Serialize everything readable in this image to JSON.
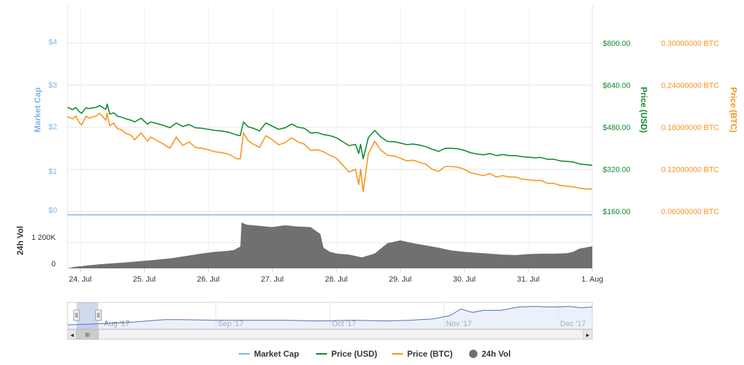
{
  "colors": {
    "market_cap": "#7cb5ec",
    "price_usd": "#0d8a2b",
    "price_btc": "#f7931a",
    "volume": "#707070",
    "grid": "#e6e6e6",
    "navigator_fill": "#dfe6f5",
    "navigator_line": "#4a6fb5"
  },
  "chart_data": [
    {
      "type": "line",
      "x_tick_labels": [
        "24. Jul",
        "25. Jul",
        "26. Jul",
        "27. Jul",
        "28. Jul",
        "29. Jul",
        "30. Jul",
        "31. Jul",
        "1. Aug"
      ],
      "x_range_days": [
        0,
        8.2
      ],
      "left_axis": {
        "label": "Market Cap",
        "ticks": [
          "$0",
          "$1",
          "$2",
          "$3",
          "$4"
        ]
      },
      "right_axis_usd": {
        "label": "Price (USD)",
        "ticks": [
          "$160.00",
          "$320.00",
          "$480.00",
          "$640.00",
          "$800.00"
        ],
        "range": [
          160,
          800
        ]
      },
      "right_axis_btc": {
        "label": "Price (BTC)",
        "ticks": [
          "0.06000000 BTC",
          "0.12000000 BTC",
          "0.18000000 BTC",
          "0.24000000 BTC",
          "0.30000000 BTC"
        ],
        "range": [
          0.06,
          0.3
        ]
      },
      "series": [
        {
          "name": "Market Cap",
          "constant": 0
        },
        {
          "name": "Price (USD)",
          "x": [
            0,
            0.08,
            0.13,
            0.18,
            0.22,
            0.27,
            0.29,
            0.33,
            0.45,
            0.5,
            0.55,
            0.6,
            0.62,
            0.66,
            0.72,
            0.78,
            0.85,
            0.9,
            1.0,
            1.05,
            1.15,
            1.25,
            1.3,
            1.4,
            1.5,
            1.6,
            1.7,
            1.8,
            1.9,
            2.0,
            2.1,
            2.2,
            2.3,
            2.4,
            2.5,
            2.55,
            2.65,
            2.7,
            2.72,
            2.75,
            2.82,
            2.9,
            3.0,
            3.1,
            3.2,
            3.3,
            3.4,
            3.5,
            3.6,
            3.7,
            3.8,
            3.9,
            4.0,
            4.1,
            4.2,
            4.3,
            4.4,
            4.5,
            4.55,
            4.58,
            4.62,
            4.7,
            4.8,
            4.9,
            5.0,
            5.1,
            5.2,
            5.3,
            5.4,
            5.5,
            5.6,
            5.7,
            5.8,
            5.9,
            6.0,
            6.1,
            6.2,
            6.3,
            6.4,
            6.5,
            6.6,
            6.7,
            6.8,
            6.9,
            7.0,
            7.1,
            7.2,
            7.3,
            7.4,
            7.5,
            7.6,
            7.7,
            7.8,
            7.9,
            8.0,
            8.1,
            8.2
          ],
          "y": [
            556,
            547,
            555,
            540,
            533,
            548,
            554,
            551,
            556,
            562,
            555,
            548,
            568,
            530,
            535,
            522,
            518,
            513,
            506,
            500,
            514,
            492,
            500,
            494,
            487,
            478,
            496,
            483,
            490,
            478,
            476,
            472,
            468,
            466,
            462,
            458,
            450,
            448,
            470,
            500,
            482,
            476,
            466,
            496,
            484,
            472,
            478,
            492,
            480,
            476,
            458,
            460,
            452,
            448,
            440,
            425,
            410,
            415,
            380,
            415,
            360,
            440,
            468,
            442,
            426,
            425,
            420,
            414,
            416,
            412,
            406,
            396,
            388,
            400,
            400,
            398,
            392,
            383,
            378,
            375,
            380,
            372,
            376,
            372,
            372,
            368,
            366,
            364,
            365,
            358,
            358,
            352,
            350,
            348,
            340,
            338,
            335
          ]
        },
        {
          "name": "Price (BTC)",
          "x": [
            0,
            0.08,
            0.13,
            0.18,
            0.22,
            0.27,
            0.29,
            0.33,
            0.45,
            0.5,
            0.55,
            0.6,
            0.62,
            0.66,
            0.72,
            0.78,
            0.85,
            0.9,
            1.0,
            1.05,
            1.15,
            1.25,
            1.3,
            1.4,
            1.5,
            1.6,
            1.7,
            1.8,
            1.9,
            2.0,
            2.1,
            2.2,
            2.3,
            2.4,
            2.5,
            2.55,
            2.65,
            2.7,
            2.72,
            2.75,
            2.82,
            2.9,
            3.0,
            3.1,
            3.2,
            3.3,
            3.4,
            3.5,
            3.6,
            3.7,
            3.8,
            3.9,
            4.0,
            4.1,
            4.2,
            4.3,
            4.4,
            4.5,
            4.55,
            4.58,
            4.62,
            4.7,
            4.8,
            4.9,
            5.0,
            5.1,
            5.2,
            5.3,
            5.4,
            5.5,
            5.6,
            5.7,
            5.8,
            5.9,
            6.0,
            6.1,
            6.2,
            6.3,
            6.4,
            6.5,
            6.6,
            6.7,
            6.8,
            6.9,
            7.0,
            7.1,
            7.2,
            7.3,
            7.4,
            7.5,
            7.6,
            7.7,
            7.8,
            7.9,
            8.0,
            8.1,
            8.2
          ],
          "y": [
            0.195,
            0.192,
            0.196,
            0.187,
            0.183,
            0.192,
            0.196,
            0.193,
            0.196,
            0.2,
            0.195,
            0.19,
            0.2,
            0.182,
            0.186,
            0.178,
            0.176,
            0.172,
            0.168,
            0.162,
            0.172,
            0.16,
            0.166,
            0.161,
            0.156,
            0.15,
            0.166,
            0.154,
            0.159,
            0.151,
            0.15,
            0.148,
            0.145,
            0.144,
            0.142,
            0.14,
            0.135,
            0.135,
            0.15,
            0.172,
            0.161,
            0.156,
            0.151,
            0.168,
            0.162,
            0.155,
            0.158,
            0.165,
            0.159,
            0.156,
            0.147,
            0.148,
            0.145,
            0.14,
            0.136,
            0.126,
            0.116,
            0.12,
            0.098,
            0.12,
            0.088,
            0.142,
            0.16,
            0.147,
            0.14,
            0.139,
            0.136,
            0.132,
            0.133,
            0.13,
            0.127,
            0.12,
            0.117,
            0.124,
            0.124,
            0.123,
            0.12,
            0.115,
            0.113,
            0.111,
            0.114,
            0.109,
            0.111,
            0.109,
            0.109,
            0.106,
            0.105,
            0.104,
            0.104,
            0.1,
            0.1,
            0.097,
            0.096,
            0.095,
            0.093,
            0.092,
            0.092
          ]
        },
        {
          "name": "24h Vol",
          "type": "area",
          "axis_label": "24h Vol",
          "ticks": [
            "0",
            "1 200K"
          ],
          "range": [
            0,
            2000000
          ],
          "x": [
            0,
            0.1,
            0.3,
            0.5,
            0.8,
            1.0,
            1.3,
            1.6,
            1.9,
            2.1,
            2.3,
            2.5,
            2.6,
            2.7,
            2.72,
            2.8,
            3.0,
            3.2,
            3.4,
            3.6,
            3.8,
            3.95,
            4.0,
            4.1,
            4.2,
            4.4,
            4.6,
            4.8,
            5.0,
            5.2,
            5.4,
            5.6,
            5.8,
            6.0,
            6.2,
            6.4,
            6.6,
            6.8,
            7.0,
            7.2,
            7.4,
            7.6,
            7.8,
            7.9,
            8.0,
            8.2
          ],
          "y": [
            0,
            60000,
            120000,
            180000,
            240000,
            280000,
            350000,
            430000,
            560000,
            650000,
            720000,
            760000,
            800000,
            950000,
            2000000,
            1900000,
            1850000,
            1800000,
            1880000,
            1820000,
            1800000,
            1500000,
            900000,
            720000,
            650000,
            600000,
            480000,
            650000,
            1100000,
            1220000,
            1100000,
            1000000,
            900000,
            780000,
            720000,
            680000,
            640000,
            600000,
            580000,
            620000,
            640000,
            640000,
            660000,
            720000,
            860000,
            960000
          ]
        }
      ],
      "legend": [
        "Market Cap",
        "Price (USD)",
        "Price (BTC)",
        "24h Vol"
      ]
    },
    {
      "type": "area",
      "role": "navigator",
      "x_tick_labels": [
        "Aug '17",
        "Sep '17",
        "Oct '17",
        "Nov '17",
        "Dec '17"
      ],
      "x_range_months": [
        0,
        4.6
      ],
      "x": [
        0,
        0.3,
        0.5,
        0.7,
        0.85,
        1.0,
        1.3,
        1.6,
        1.9,
        2.2,
        2.5,
        2.8,
        3.0,
        3.2,
        3.35,
        3.45,
        3.55,
        3.65,
        3.8,
        3.95,
        4.1,
        4.25,
        4.4,
        4.5,
        4.6
      ],
      "y": [
        6,
        8,
        9,
        12,
        14,
        14,
        13,
        13,
        13,
        12,
        13,
        12,
        13,
        15,
        20,
        30,
        25,
        28,
        28,
        33,
        34,
        33,
        34,
        32,
        33
      ],
      "y_range": [
        0,
        40
      ],
      "selected_range_months": [
        0,
        0.27
      ]
    }
  ],
  "legend_labels": {
    "market_cap": "Market Cap",
    "price_usd": "Price (USD)",
    "price_btc": "Price (BTC)",
    "volume": "24h Vol"
  },
  "scrollbar": {
    "left_arrow": "◂",
    "right_arrow": "▸",
    "grip": "III"
  }
}
